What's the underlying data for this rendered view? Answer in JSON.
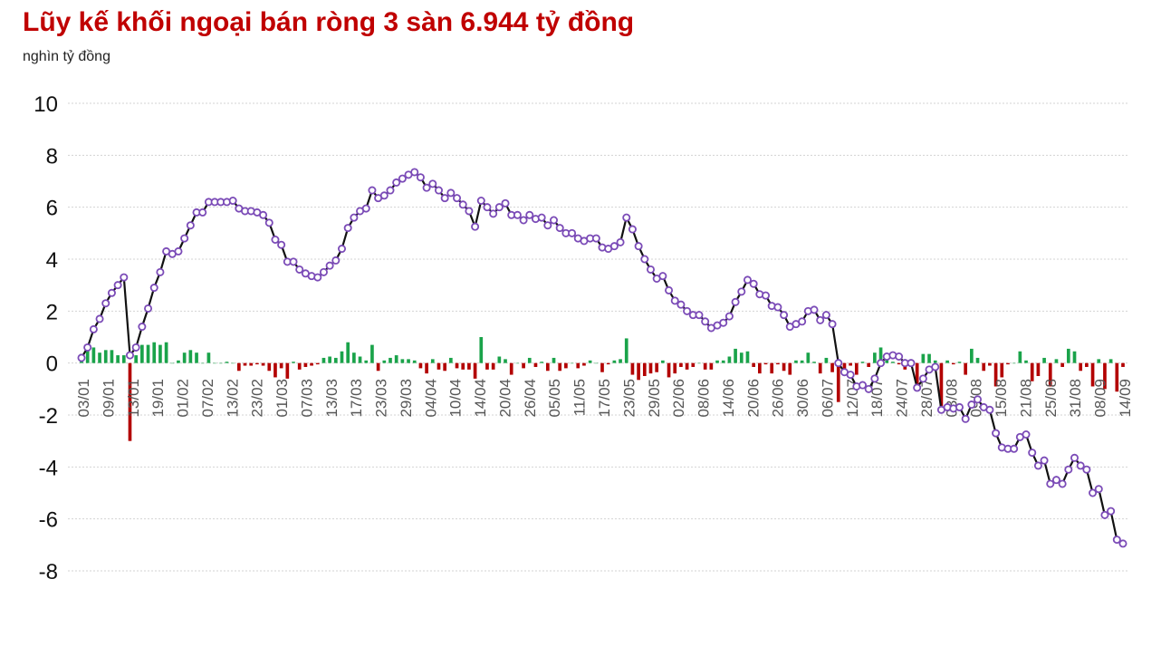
{
  "header": {
    "title": "Lũy kế khối ngoại bán ròng 3 sàn 6.944 tỷ đồng",
    "unit": "nghìn tỷ đồng"
  },
  "colors": {
    "title": "#c00000",
    "line": "#111111",
    "marker_fill": "#ffffff",
    "marker_stroke": "#7b4bb7",
    "bar_positive": "#1aa34a",
    "bar_negative": "#b30000",
    "grid": "#d3d3d3"
  },
  "chart_data": {
    "type": "line+bar",
    "title": "Lũy kế khối ngoại bán ròng 3 sàn 6.944 tỷ đồng",
    "ylabel": "nghìn tỷ đồng",
    "ylim": [
      -8,
      10
    ],
    "yticks": [
      10,
      8,
      6,
      4,
      2,
      0,
      -2,
      -4,
      -6,
      -8
    ],
    "grid": true,
    "legend": "none",
    "x_tick_labels": [
      "03/01",
      "09/01",
      "13/01",
      "19/01",
      "01/02",
      "07/02",
      "13/02",
      "23/02",
      "01/03",
      "07/03",
      "13/03",
      "17/03",
      "23/03",
      "29/03",
      "04/04",
      "10/04",
      "14/04",
      "20/04",
      "26/04",
      "05/05",
      "11/05",
      "17/05",
      "23/05",
      "29/05",
      "02/06",
      "08/06",
      "14/06",
      "20/06",
      "26/06",
      "30/06",
      "06/07",
      "12/07",
      "18/07",
      "24/07",
      "28/07",
      "03/08",
      "09/08",
      "15/08",
      "21/08",
      "25/08",
      "31/08",
      "08/09",
      "14/09"
    ],
    "series": [
      {
        "kind": "line",
        "values": [
          0.2,
          0.6,
          1.3,
          1.7,
          2.3,
          2.7,
          3.0,
          3.3,
          0.3,
          0.6,
          1.4,
          2.1,
          2.9,
          3.5,
          4.3,
          4.2,
          4.3,
          4.8,
          5.3,
          5.8,
          5.8,
          6.2,
          6.2,
          6.2,
          6.2,
          6.25,
          5.95,
          5.85,
          5.85,
          5.8,
          5.7,
          5.4,
          4.75,
          4.55,
          3.9,
          3.9,
          3.6,
          3.45,
          3.35,
          3.3,
          3.5,
          3.75,
          3.95,
          4.4,
          5.2,
          5.6,
          5.85,
          5.95,
          6.65,
          6.35,
          6.45,
          6.65,
          6.95,
          7.1,
          7.25,
          7.35,
          7.15,
          6.75,
          6.9,
          6.65,
          6.35,
          6.55,
          6.35,
          6.1,
          5.85,
          5.25,
          6.25,
          6.0,
          5.75,
          6.0,
          6.15,
          5.7,
          5.7,
          5.5,
          5.7,
          5.55,
          5.6,
          5.3,
          5.5,
          5.2,
          5.0,
          5.0,
          4.8,
          4.7,
          4.8,
          4.8,
          4.45,
          4.4,
          4.5,
          4.65,
          5.6,
          5.15,
          4.5,
          4.0,
          3.6,
          3.25,
          3.35,
          2.8,
          2.4,
          2.25,
          2.0,
          1.85,
          1.85,
          1.6,
          1.35,
          1.45,
          1.55,
          1.8,
          2.35,
          2.75,
          3.2,
          3.05,
          2.65,
          2.6,
          2.2,
          2.15,
          1.85,
          1.4,
          1.5,
          1.6,
          2.0,
          2.05,
          1.65,
          1.85,
          1.5,
          0.0,
          -0.35,
          -0.45,
          -0.9,
          -0.85,
          -1.0,
          -0.6,
          0.0,
          0.25,
          0.3,
          0.25,
          0.0,
          0.0,
          -0.95,
          -0.6,
          -0.25,
          -0.15,
          -1.8,
          -1.7,
          -1.75,
          -1.7,
          -2.15,
          -1.6,
          -1.4,
          -1.7,
          -1.8,
          -2.7,
          -3.25,
          -3.3,
          -3.3,
          -2.85,
          -2.75,
          -3.45,
          -3.95,
          -3.75,
          -4.65,
          -4.5,
          -4.65,
          -4.1,
          -3.65,
          -3.95,
          -4.1,
          -5.0,
          -4.85,
          -5.85,
          -5.7,
          -6.8,
          -6.95
        ]
      },
      {
        "kind": "bar",
        "values": [
          0.35,
          0.5,
          0.6,
          0.4,
          0.5,
          0.5,
          0.3,
          0.3,
          -3.0,
          0.3,
          0.7,
          0.7,
          0.8,
          0.7,
          0.8,
          0.0,
          0.1,
          0.4,
          0.5,
          0.4,
          0.0,
          0.4,
          0.0,
          0.0,
          0.05,
          0.0,
          -0.3,
          -0.1,
          -0.1,
          -0.05,
          -0.1,
          -0.3,
          -0.55,
          -0.2,
          -0.6,
          0.05,
          -0.25,
          -0.15,
          -0.1,
          -0.05,
          0.2,
          0.25,
          0.2,
          0.45,
          0.8,
          0.4,
          0.25,
          0.1,
          0.7,
          -0.3,
          0.1,
          0.2,
          0.3,
          0.15,
          0.15,
          0.1,
          -0.2,
          -0.4,
          0.15,
          -0.25,
          -0.3,
          0.2,
          -0.2,
          -0.25,
          -0.25,
          -0.6,
          1.0,
          -0.25,
          -0.25,
          0.25,
          0.15,
          -0.45,
          0.0,
          -0.2,
          0.2,
          -0.15,
          0.05,
          -0.3,
          0.2,
          -0.3,
          -0.2,
          0.0,
          -0.2,
          -0.1,
          0.1,
          0.0,
          -0.35,
          -0.05,
          0.1,
          0.15,
          0.95,
          -0.45,
          -0.65,
          -0.5,
          -0.4,
          -0.35,
          0.1,
          -0.55,
          -0.4,
          -0.15,
          -0.25,
          -0.15,
          0.0,
          -0.25,
          -0.25,
          0.1,
          0.1,
          0.25,
          0.55,
          0.4,
          0.45,
          -0.15,
          -0.4,
          -0.05,
          -0.4,
          -0.05,
          -0.3,
          -0.45,
          0.1,
          0.1,
          0.4,
          0.05,
          -0.4,
          0.2,
          -0.35,
          -1.5,
          -0.35,
          -0.1,
          -0.45,
          0.05,
          -0.15,
          0.4,
          0.6,
          0.25,
          0.05,
          -0.05,
          -0.25,
          0.0,
          -0.95,
          0.35,
          0.35,
          0.1,
          -1.65,
          0.1,
          -0.05,
          0.05,
          -0.45,
          0.55,
          0.2,
          -0.3,
          -0.1,
          -0.9,
          -0.55,
          -0.05,
          0.0,
          0.45,
          0.1,
          -0.7,
          -0.5,
          0.2,
          -0.9,
          0.15,
          -0.15,
          0.55,
          0.45,
          -0.3,
          -0.15,
          -0.9,
          0.15,
          -1.0,
          0.15,
          -1.1,
          -0.15
        ]
      }
    ]
  }
}
